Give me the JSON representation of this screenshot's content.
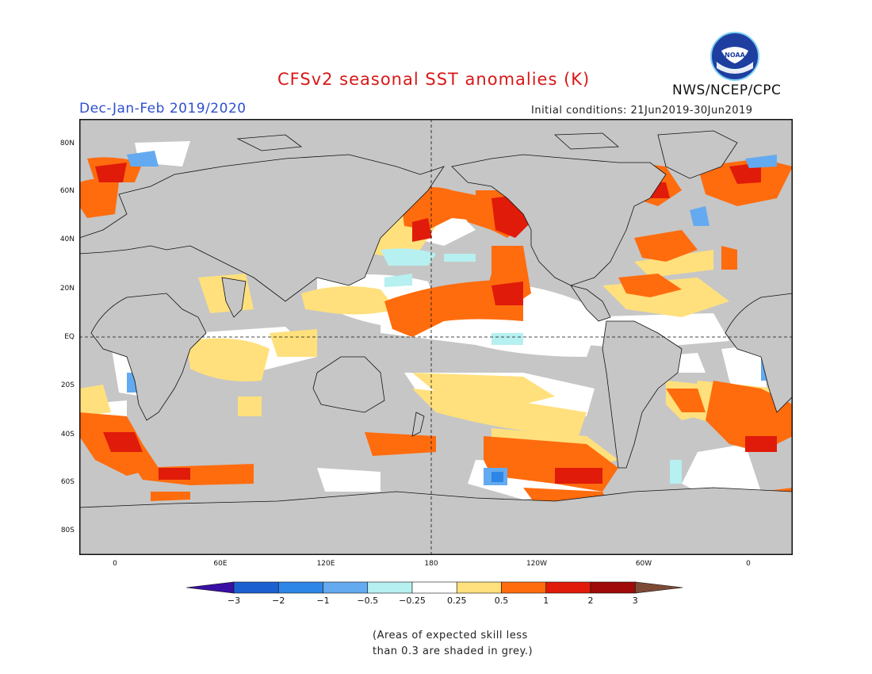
{
  "header": {
    "title": "CFSv2 seasonal SST anomalies (K)",
    "season": "Dec-Jan-Feb 2019/2020",
    "initial_conditions": "Initial conditions: 21Jun2019-30Jun2019",
    "organization": "NWS/NCEP/CPC",
    "logo_text": "NOAA"
  },
  "map": {
    "lat_labels": [
      "80N",
      "60N",
      "40N",
      "20N",
      "EQ",
      "20S",
      "40S",
      "60S",
      "80S"
    ],
    "lon_labels": [
      "0",
      "60E",
      "120E",
      "180",
      "120W",
      "60W",
      "0"
    ],
    "colors": {
      "land": "#c6c6c6",
      "skill_mask": "#c6c6c6",
      "ocean_neutral": "#ffffff",
      "coast": "#111111"
    }
  },
  "colorbar": {
    "tick_labels": [
      "−3",
      "−2",
      "−1",
      "−0.5",
      "−0.25",
      "0.25",
      "0.5",
      "1",
      "2",
      "3"
    ],
    "colors": [
      "#3a0fa5",
      "#1c5fd0",
      "#2e86e6",
      "#64aaf0",
      "#b6f0f0",
      "#ffffff",
      "#ffe07c",
      "#ff6c0e",
      "#e01b0a",
      "#a00a08",
      "#7d4a35"
    ]
  },
  "note": {
    "line1": "(Areas of expected skill less",
    "line2": "than 0.3 are shaded in grey.)"
  }
}
